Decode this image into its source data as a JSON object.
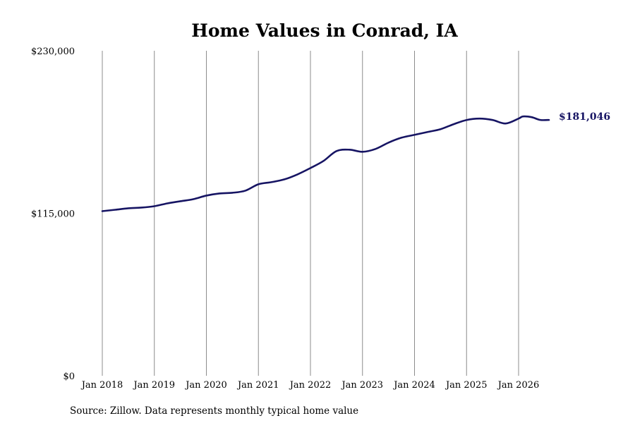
{
  "chart_data": {
    "type": "line",
    "title": "Home Values in Conrad, IA",
    "xlabel": "",
    "ylabel": "",
    "ylim": [
      0,
      230000
    ],
    "yticks": [
      "$0",
      "$115,000",
      "$230,000"
    ],
    "ytick_values": [
      0,
      115000,
      230000
    ],
    "xticks": [
      "Jan 2018",
      "Jan 2019",
      "Jan 2020",
      "Jan 2021",
      "Jan 2022",
      "Jan 2023",
      "Jan 2024",
      "Jan 2025",
      "Jan 2026"
    ],
    "grid": "vertical",
    "end_label": "$181,046",
    "series": [
      {
        "color": "#161463",
        "points": [
          [
            "2018-01",
            116500
          ],
          [
            "2018-04",
            117500
          ],
          [
            "2018-07",
            118500
          ],
          [
            "2018-10",
            119000
          ],
          [
            "2019-01",
            120000
          ],
          [
            "2019-04",
            122000
          ],
          [
            "2019-07",
            123500
          ],
          [
            "2019-10",
            125000
          ],
          [
            "2020-01",
            127500
          ],
          [
            "2020-04",
            129000
          ],
          [
            "2020-07",
            129500
          ],
          [
            "2020-10",
            131000
          ],
          [
            "2021-01",
            135500
          ],
          [
            "2021-04",
            137000
          ],
          [
            "2021-07",
            139000
          ],
          [
            "2021-10",
            142500
          ],
          [
            "2022-01",
            147000
          ],
          [
            "2022-04",
            152000
          ],
          [
            "2022-07",
            159000
          ],
          [
            "2022-10",
            160000
          ],
          [
            "2023-01",
            158500
          ],
          [
            "2023-04",
            160500
          ],
          [
            "2023-07",
            165000
          ],
          [
            "2023-10",
            168500
          ],
          [
            "2024-01",
            170500
          ],
          [
            "2024-04",
            172500
          ],
          [
            "2024-07",
            174500
          ],
          [
            "2024-10",
            178000
          ],
          [
            "2025-01",
            181000
          ],
          [
            "2025-04",
            182000
          ],
          [
            "2025-07",
            181000
          ],
          [
            "2025-10",
            178500
          ],
          [
            "2026-01",
            182000
          ],
          [
            "2026-02",
            183500
          ],
          [
            "2026-04",
            183000
          ],
          [
            "2026-06",
            181046
          ],
          [
            "2026-08",
            181046
          ]
        ]
      }
    ]
  },
  "source_text": "Source: Zillow. Data represents monthly typical home value"
}
